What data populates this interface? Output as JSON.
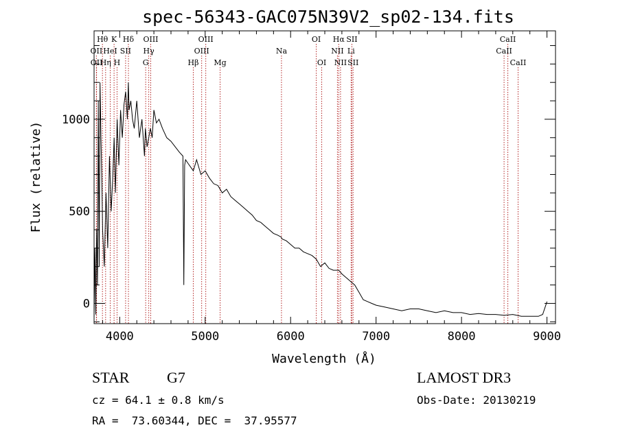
{
  "chart_data": {
    "type": "line",
    "title": "spec-56343-GAC075N39V2_sp02-134.fits",
    "xlabel": "Wavelength (Å)",
    "ylabel": "Flux (relative)",
    "xlim": [
      3700,
      9100
    ],
    "ylim": [
      -110,
      1480
    ],
    "xticks": [
      {
        "value": 4000,
        "label": "4000"
      },
      {
        "value": 5000,
        "label": "5000"
      },
      {
        "value": 6000,
        "label": "6000"
      },
      {
        "value": 7000,
        "label": "7000"
      },
      {
        "value": 8000,
        "label": "8000"
      },
      {
        "value": 9000,
        "label": "9000"
      }
    ],
    "yticks": [
      {
        "value": 0,
        "label": "0"
      },
      {
        "value": 500,
        "label": "500"
      },
      {
        "value": 1000,
        "label": "1000"
      }
    ],
    "series": [
      {
        "name": "flux",
        "color": "#000000",
        "x": [
          3700,
          3710,
          3720,
          3730,
          3740,
          3750,
          3760,
          3770,
          3780,
          3790,
          3800,
          3820,
          3840,
          3860,
          3880,
          3900,
          3920,
          3935,
          3950,
          3970,
          3990,
          4010,
          4030,
          4050,
          4070,
          4090,
          4101,
          4110,
          4130,
          4150,
          4170,
          4200,
          4230,
          4260,
          4290,
          4300,
          4320,
          4340,
          4360,
          4380,
          4400,
          4430,
          4460,
          4500,
          4550,
          4600,
          4650,
          4700,
          4740,
          4750,
          4760,
          4770,
          4800,
          4861,
          4900,
          4950,
          5000,
          5050,
          5100,
          5150,
          5200,
          5250,
          5300,
          5350,
          5400,
          5450,
          5500,
          5550,
          5600,
          5650,
          5700,
          5750,
          5800,
          5850,
          5890,
          5900,
          5950,
          6000,
          6050,
          6100,
          6150,
          6200,
          6250,
          6300,
          6350,
          6400,
          6450,
          6500,
          6563,
          6600,
          6650,
          6700,
          6750,
          6800,
          6850,
          6900,
          6950,
          7000,
          7100,
          7200,
          7300,
          7400,
          7500,
          7600,
          7700,
          7800,
          7900,
          8000,
          8100,
          8200,
          8300,
          8400,
          8500,
          8600,
          8700,
          8800,
          8900,
          8950,
          9000
        ],
        "values": [
          -80,
          300,
          -60,
          400,
          100,
          1100,
          200,
          1200,
          900,
          700,
          400,
          200,
          600,
          300,
          800,
          500,
          700,
          900,
          600,
          1000,
          750,
          1050,
          900,
          1080,
          1150,
          1000,
          1200,
          1050,
          1100,
          1000,
          950,
          1100,
          900,
          1000,
          800,
          950,
          850,
          900,
          950,
          900,
          1050,
          980,
          1000,
          950,
          900,
          880,
          850,
          820,
          800,
          100,
          750,
          780,
          760,
          720,
          780,
          700,
          720,
          680,
          650,
          640,
          600,
          620,
          580,
          560,
          540,
          520,
          500,
          480,
          450,
          440,
          420,
          400,
          380,
          370,
          360,
          350,
          340,
          320,
          300,
          300,
          280,
          270,
          260,
          240,
          200,
          220,
          190,
          180,
          180,
          160,
          140,
          120,
          100,
          60,
          20,
          10,
          0,
          -10,
          -20,
          -30,
          -40,
          -30,
          -30,
          -40,
          -50,
          -40,
          -50,
          -50,
          -60,
          -55,
          -60,
          -60,
          -65,
          -60,
          -70,
          -70,
          -70,
          -60,
          10
        ]
      }
    ],
    "line_markers": [
      {
        "label": "Hθ",
        "wavelength": 3798,
        "row": 0
      },
      {
        "label": "OII",
        "wavelength": 3727,
        "row": 1
      },
      {
        "label": "OII",
        "wavelength": 3729,
        "row": 2
      },
      {
        "label": "K",
        "wavelength": 3934,
        "row": 0
      },
      {
        "label": "HeI",
        "wavelength": 3889,
        "row": 1
      },
      {
        "label": "Hη",
        "wavelength": 3835,
        "row": 2
      },
      {
        "label": "Hδ",
        "wavelength": 4102,
        "row": 0
      },
      {
        "label": "SII",
        "wavelength": 4069,
        "row": 1
      },
      {
        "label": "H",
        "wavelength": 3969,
        "row": 2
      },
      {
        "label": "OIII",
        "wavelength": 4363,
        "row": 0
      },
      {
        "label": "Hγ",
        "wavelength": 4340,
        "row": 1
      },
      {
        "label": "G",
        "wavelength": 4304,
        "row": 2
      },
      {
        "label": "OIII",
        "wavelength": 5007,
        "row": 0
      },
      {
        "label": "OIII",
        "wavelength": 4959,
        "row": 1
      },
      {
        "label": "Hβ",
        "wavelength": 4861,
        "row": 2
      },
      {
        "label": "Mg",
        "wavelength": 5175,
        "row": 2
      },
      {
        "label": "Na",
        "wavelength": 5893,
        "row": 1
      },
      {
        "label": "OI",
        "wavelength": 6300,
        "row": 0
      },
      {
        "label": "OI",
        "wavelength": 6364,
        "row": 2
      },
      {
        "label": "Hα",
        "wavelength": 6563,
        "row": 0
      },
      {
        "label": "SII",
        "wavelength": 6717,
        "row": 0
      },
      {
        "label": "NII",
        "wavelength": 6548,
        "row": 1
      },
      {
        "label": "Li",
        "wavelength": 6708,
        "row": 1
      },
      {
        "label": "NII",
        "wavelength": 6584,
        "row": 2
      },
      {
        "label": "SII",
        "wavelength": 6731,
        "row": 2
      },
      {
        "label": "CaII",
        "wavelength": 8542,
        "row": 0
      },
      {
        "label": "CaII",
        "wavelength": 8498,
        "row": 1
      },
      {
        "label": "CaII",
        "wavelength": 8662,
        "row": 2
      }
    ],
    "line_marker_color": "#b22222"
  },
  "info": {
    "object_class": "STAR",
    "subclass": "G7",
    "survey": "LAMOST DR3",
    "redshift_line": "cz = 64.1 ± 0.8 km/s",
    "obs_date_line": "Obs-Date: 20130219",
    "coords_line": "RA =  73.60344, DEC =  37.95577"
  }
}
